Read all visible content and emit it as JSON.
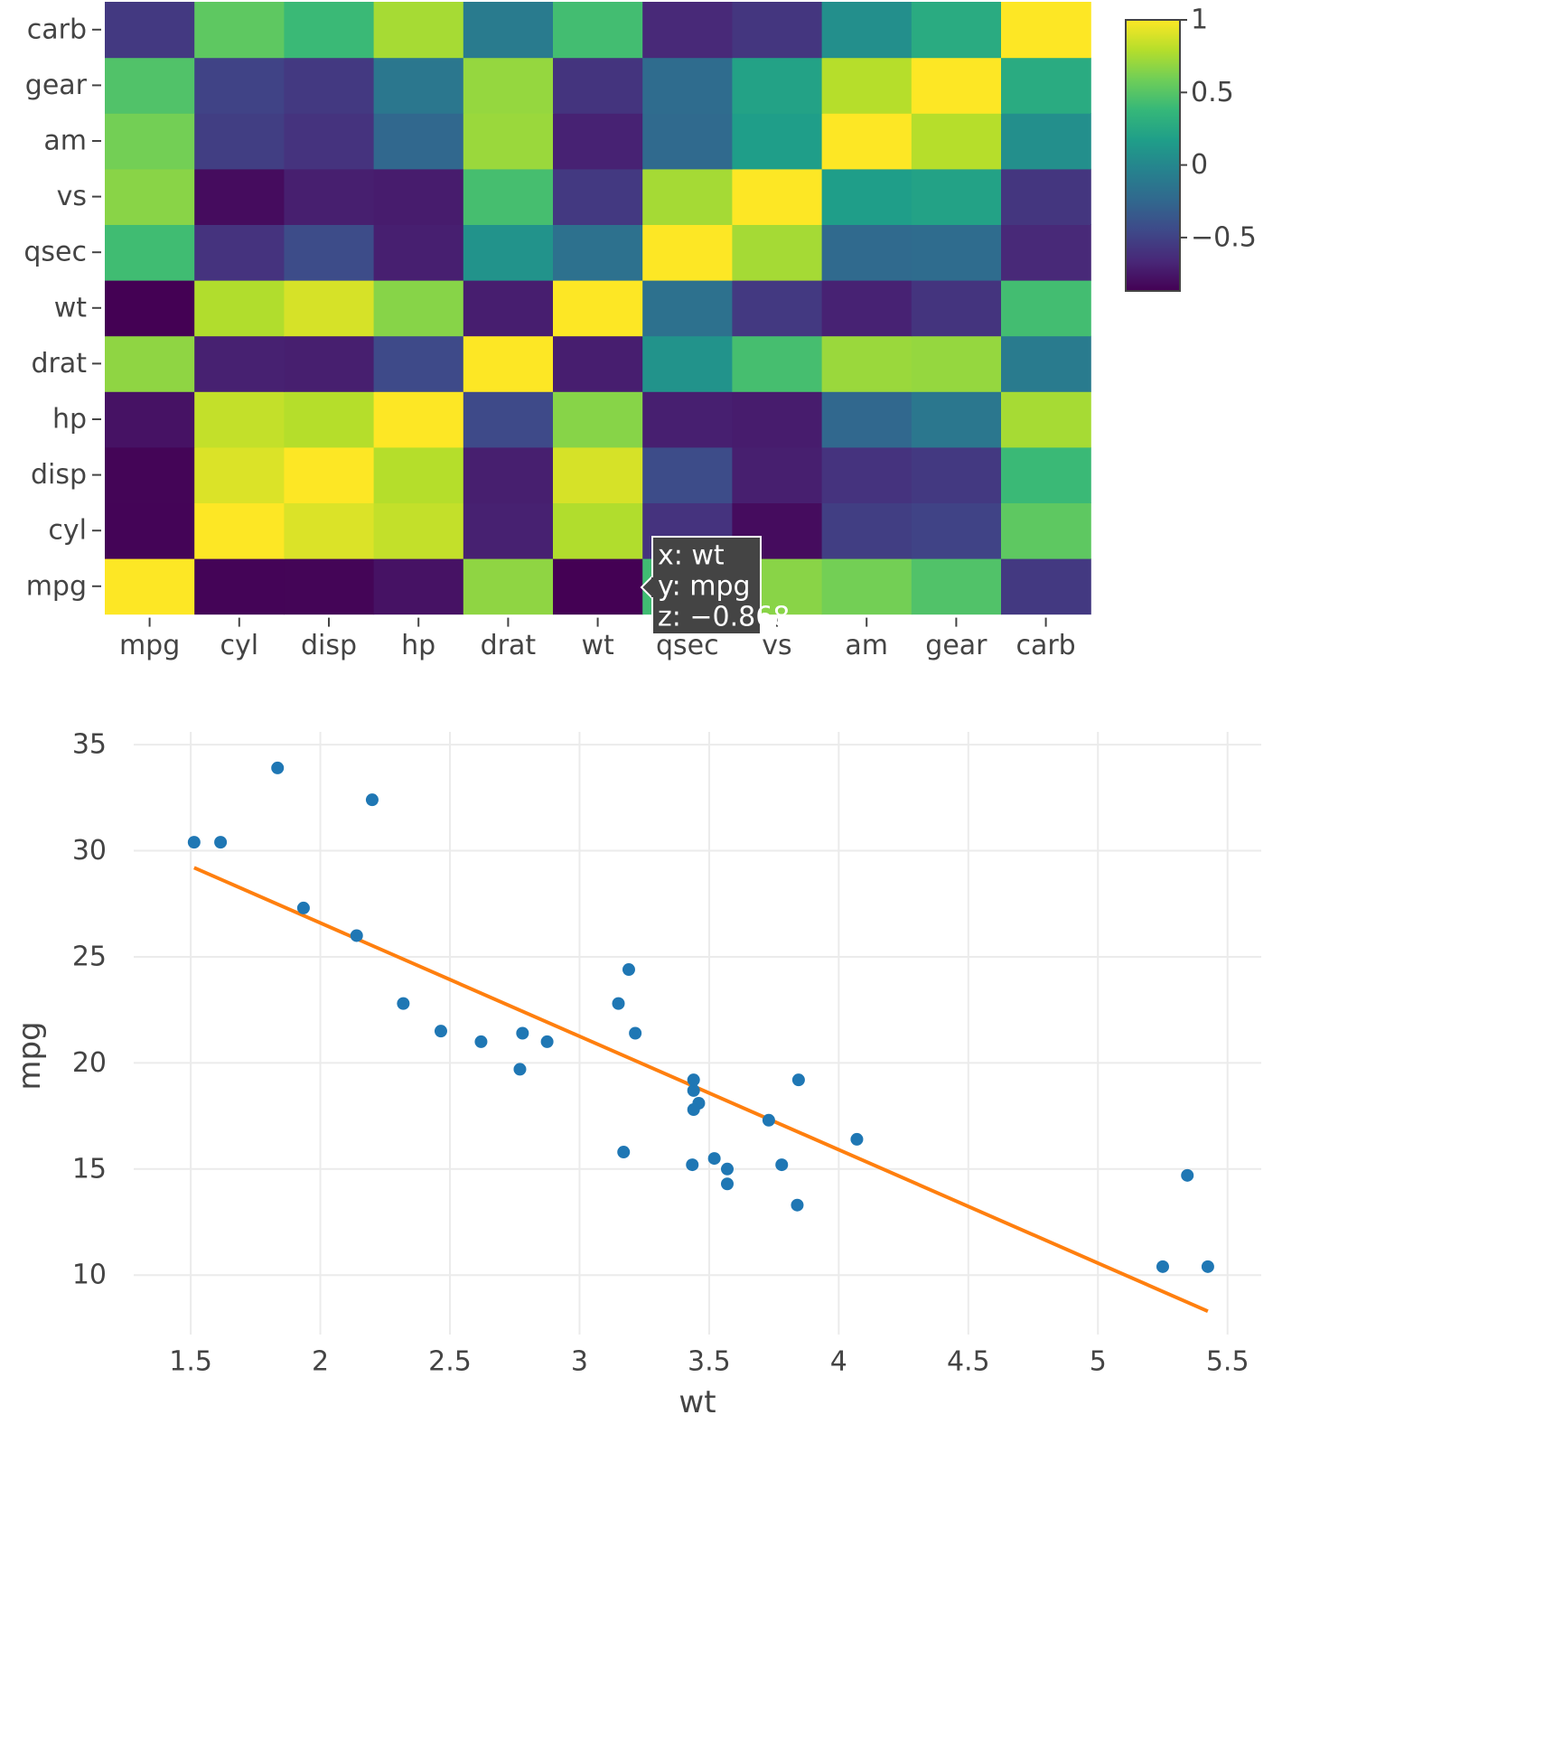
{
  "chart_data": [
    {
      "type": "heatmap",
      "variables": [
        "mpg",
        "cyl",
        "disp",
        "hp",
        "drat",
        "wt",
        "qsec",
        "vs",
        "am",
        "gear",
        "carb"
      ],
      "x_labels": [
        "mpg",
        "cyl",
        "disp",
        "hp",
        "drat",
        "wt",
        "qsec",
        "vs",
        "am",
        "gear",
        "carb"
      ],
      "y_labels": [
        "mpg",
        "cyl",
        "disp",
        "hp",
        "drat",
        "wt",
        "qsec",
        "vs",
        "am",
        "gear",
        "carb"
      ],
      "y_order": "bottom-to-top",
      "z": [
        [
          1.0,
          -0.852,
          -0.848,
          -0.776,
          0.681,
          -0.868,
          0.419,
          0.664,
          0.6,
          0.48,
          -0.551
        ],
        [
          -0.852,
          1.0,
          0.902,
          0.832,
          -0.7,
          0.782,
          -0.591,
          -0.811,
          -0.523,
          -0.493,
          0.527
        ],
        [
          -0.848,
          0.902,
          1.0,
          0.791,
          -0.71,
          0.888,
          -0.434,
          -0.71,
          -0.591,
          -0.556,
          0.395
        ],
        [
          -0.776,
          0.832,
          0.791,
          1.0,
          -0.449,
          0.659,
          -0.708,
          -0.723,
          -0.243,
          -0.126,
          0.75
        ],
        [
          0.681,
          -0.7,
          -0.71,
          -0.449,
          1.0,
          -0.712,
          0.091,
          0.44,
          0.713,
          0.7,
          -0.091
        ],
        [
          -0.868,
          0.782,
          0.888,
          0.659,
          -0.712,
          1.0,
          -0.175,
          -0.555,
          -0.692,
          -0.583,
          0.428
        ],
        [
          0.419,
          -0.591,
          -0.434,
          -0.708,
          0.091,
          -0.175,
          1.0,
          0.745,
          -0.23,
          -0.213,
          -0.656
        ],
        [
          0.664,
          -0.811,
          -0.71,
          -0.723,
          0.44,
          -0.555,
          0.745,
          1.0,
          0.168,
          0.206,
          -0.57
        ],
        [
          0.6,
          -0.523,
          -0.591,
          -0.243,
          0.713,
          -0.692,
          -0.23,
          0.168,
          1.0,
          0.794,
          0.058
        ],
        [
          0.48,
          -0.493,
          -0.556,
          -0.126,
          0.7,
          -0.583,
          -0.213,
          0.206,
          0.794,
          1.0,
          0.274
        ],
        [
          -0.551,
          0.527,
          0.395,
          0.75,
          -0.091,
          0.428,
          -0.656,
          -0.57,
          0.058,
          0.274,
          1.0
        ]
      ],
      "zmin": -0.868,
      "zmax": 1.0,
      "colorscale": "viridis",
      "colorbar_ticks": [
        "1",
        "0.5",
        "0",
        "−0.5"
      ],
      "colorbar_tick_values": [
        1.0,
        0.5,
        0.0,
        -0.5
      ],
      "tooltip": {
        "cell_x": "wt",
        "cell_y": "mpg",
        "lines": [
          "x: wt",
          "y: mpg",
          "z: −0.868"
        ]
      }
    },
    {
      "type": "scatter",
      "xlabel": "wt",
      "ylabel": "mpg",
      "xlim": [
        1.28,
        5.63
      ],
      "ylim": [
        7.2,
        35.6
      ],
      "x_ticks": [
        "1.5",
        "2",
        "2.5",
        "3",
        "3.5",
        "4",
        "4.5",
        "5",
        "5.5"
      ],
      "x_tick_values": [
        1.5,
        2,
        2.5,
        3,
        3.5,
        4,
        4.5,
        5,
        5.5
      ],
      "y_ticks": [
        "10",
        "15",
        "20",
        "25",
        "30",
        "35"
      ],
      "y_tick_values": [
        10,
        15,
        20,
        25,
        30,
        35
      ],
      "grid": true,
      "points": [
        {
          "x": 2.62,
          "y": 21.0
        },
        {
          "x": 2.875,
          "y": 21.0
        },
        {
          "x": 2.32,
          "y": 22.8
        },
        {
          "x": 3.215,
          "y": 21.4
        },
        {
          "x": 3.44,
          "y": 18.7
        },
        {
          "x": 3.46,
          "y": 18.1
        },
        {
          "x": 3.57,
          "y": 14.3
        },
        {
          "x": 3.19,
          "y": 24.4
        },
        {
          "x": 3.15,
          "y": 22.8
        },
        {
          "x": 3.44,
          "y": 19.2
        },
        {
          "x": 3.44,
          "y": 17.8
        },
        {
          "x": 4.07,
          "y": 16.4
        },
        {
          "x": 3.73,
          "y": 17.3
        },
        {
          "x": 3.78,
          "y": 15.2
        },
        {
          "x": 5.25,
          "y": 10.4
        },
        {
          "x": 5.424,
          "y": 10.4
        },
        {
          "x": 5.345,
          "y": 14.7
        },
        {
          "x": 2.2,
          "y": 32.4
        },
        {
          "x": 1.615,
          "y": 30.4
        },
        {
          "x": 1.835,
          "y": 33.9
        },
        {
          "x": 2.465,
          "y": 21.5
        },
        {
          "x": 3.52,
          "y": 15.5
        },
        {
          "x": 3.435,
          "y": 15.2
        },
        {
          "x": 3.84,
          "y": 13.3
        },
        {
          "x": 3.845,
          "y": 19.2
        },
        {
          "x": 1.935,
          "y": 27.3
        },
        {
          "x": 2.14,
          "y": 26.0
        },
        {
          "x": 1.513,
          "y": 30.4
        },
        {
          "x": 3.17,
          "y": 15.8
        },
        {
          "x": 2.77,
          "y": 19.7
        },
        {
          "x": 3.57,
          "y": 15.0
        },
        {
          "x": 2.78,
          "y": 21.4
        }
      ],
      "fit_line": {
        "x": [
          1.513,
          5.424
        ],
        "y": [
          29.2,
          8.3
        ]
      },
      "colors": {
        "points": "#1f77b4",
        "fit_line": "#ff7f0e"
      }
    }
  ]
}
